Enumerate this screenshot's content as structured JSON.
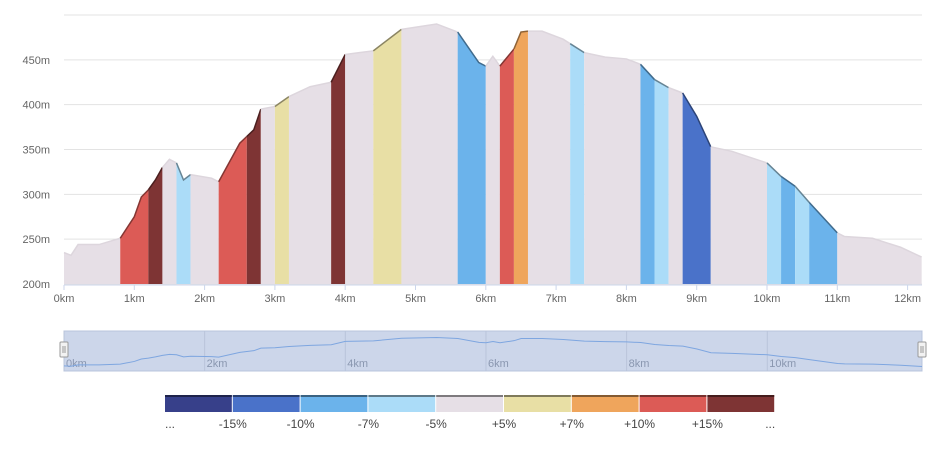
{
  "chart_data": {
    "type": "area",
    "title": "",
    "xlabel": "",
    "ylabel": "",
    "xlim": [
      0,
      12.2
    ],
    "ylim": [
      200,
      500
    ],
    "grid": true,
    "x_ticks": [
      "0km",
      "1km",
      "2km",
      "3km",
      "4km",
      "5km",
      "6km",
      "7km",
      "8km",
      "9km",
      "10km",
      "11km",
      "12km"
    ],
    "y_ticks": [
      "200m",
      "250m",
      "300m",
      "350m",
      "400m",
      "450m"
    ],
    "profile": {
      "x_km": [
        0,
        0.1,
        0.2,
        0.5,
        0.8,
        1.0,
        1.1,
        1.2,
        1.3,
        1.4,
        1.5,
        1.6,
        1.7,
        1.8,
        2.1,
        2.2,
        2.5,
        2.7,
        2.8,
        3.0,
        3.2,
        3.5,
        3.8,
        4.0,
        4.2,
        4.4,
        4.8,
        5.3,
        5.6,
        5.9,
        6.0,
        6.1,
        6.2,
        6.4,
        6.5,
        6.6,
        6.8,
        7.1,
        7.4,
        7.7,
        8.0,
        8.2,
        8.4,
        8.6,
        8.8,
        9.0,
        9.2,
        9.5,
        10.0,
        10.2,
        10.4,
        10.6,
        11.0,
        11.1,
        11.5,
        11.9,
        12.2
      ],
      "elevation_m": [
        235,
        232,
        244,
        244,
        251,
        275,
        297,
        305,
        316,
        330,
        339,
        335,
        316,
        322,
        318,
        314,
        357,
        372,
        395,
        398,
        409,
        420,
        425,
        456,
        458,
        460,
        484,
        490,
        481,
        447,
        443,
        454,
        443,
        462,
        481,
        482,
        482,
        473,
        458,
        453,
        451,
        445,
        428,
        419,
        413,
        387,
        353,
        348,
        335,
        320,
        309,
        291,
        257,
        253,
        251,
        241,
        230
      ]
    },
    "grade_bands": [
      {
        "from": 0,
        "to": 0.8,
        "class": 4
      },
      {
        "from": 0.8,
        "to": 1.2,
        "class": 7
      },
      {
        "from": 1.2,
        "to": 1.4,
        "class": 8
      },
      {
        "from": 1.4,
        "to": 1.6,
        "class": 4
      },
      {
        "from": 1.6,
        "to": 1.8,
        "class": 3
      },
      {
        "from": 1.8,
        "to": 2.2,
        "class": 4
      },
      {
        "from": 2.2,
        "to": 2.6,
        "class": 7
      },
      {
        "from": 2.6,
        "to": 2.8,
        "class": 8
      },
      {
        "from": 2.8,
        "to": 3.0,
        "class": 4
      },
      {
        "from": 3.0,
        "to": 3.2,
        "class": 5
      },
      {
        "from": 3.2,
        "to": 3.8,
        "class": 4
      },
      {
        "from": 3.8,
        "to": 4.0,
        "class": 8
      },
      {
        "from": 4.0,
        "to": 4.4,
        "class": 4
      },
      {
        "from": 4.4,
        "to": 4.8,
        "class": 5
      },
      {
        "from": 4.8,
        "to": 5.6,
        "class": 4
      },
      {
        "from": 5.6,
        "to": 6.0,
        "class": 2
      },
      {
        "from": 6.0,
        "to": 6.2,
        "class": 4
      },
      {
        "from": 6.2,
        "to": 6.4,
        "class": 7
      },
      {
        "from": 6.4,
        "to": 6.6,
        "class": 6
      },
      {
        "from": 6.6,
        "to": 7.2,
        "class": 4
      },
      {
        "from": 7.2,
        "to": 7.4,
        "class": 3
      },
      {
        "from": 7.4,
        "to": 8.2,
        "class": 4
      },
      {
        "from": 8.2,
        "to": 8.4,
        "class": 2
      },
      {
        "from": 8.4,
        "to": 8.6,
        "class": 3
      },
      {
        "from": 8.6,
        "to": 8.8,
        "class": 4
      },
      {
        "from": 8.8,
        "to": 9.2,
        "class": 1
      },
      {
        "from": 9.2,
        "to": 10.0,
        "class": 4
      },
      {
        "from": 10.0,
        "to": 10.2,
        "class": 3
      },
      {
        "from": 10.2,
        "to": 10.4,
        "class": 2
      },
      {
        "from": 10.4,
        "to": 10.6,
        "class": 3
      },
      {
        "from": 10.6,
        "to": 11.0,
        "class": 2
      },
      {
        "from": 11.0,
        "to": 12.2,
        "class": 4
      }
    ],
    "navigator": {
      "x_ticks": [
        "0km",
        "2km",
        "4km",
        "6km",
        "8km",
        "10km"
      ]
    },
    "legend": {
      "colors": [
        "#37408a",
        "#4a72c9",
        "#6bb3eb",
        "#abdcf8",
        "#e6dfe6",
        "#e8dfa5",
        "#efa55c",
        "#dc5b56",
        "#7e3434"
      ],
      "labels": [
        "...",
        "-15%",
        "-10%",
        "-7%",
        "-5%",
        "+5%",
        "+7%",
        "+10%",
        "+15%",
        "..."
      ]
    }
  }
}
